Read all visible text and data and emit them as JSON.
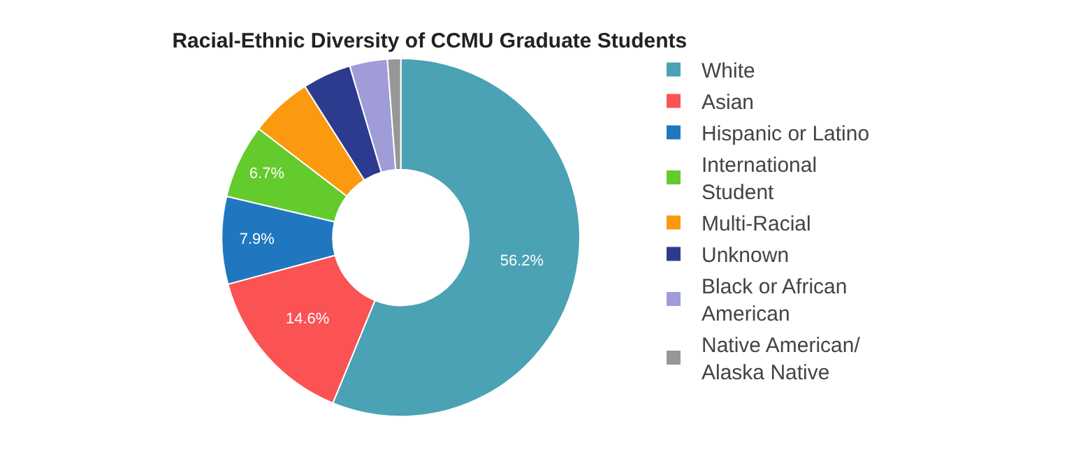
{
  "chart_data": {
    "type": "donut",
    "title": "Racial-Ethnic Diversity of CCMU Graduate Students",
    "categories": [
      "White",
      "Asian",
      "Hispanic or Latino",
      "International Student",
      "Multi-Racial",
      "Unknown",
      "Black or African American",
      "Native American/Alaska Native"
    ],
    "values": [
      56.2,
      14.6,
      7.9,
      6.7,
      5.6,
      4.4,
      3.4,
      1.2
    ],
    "value_labels": [
      "56.2%",
      "14.6%",
      "7.9%",
      "6.7%",
      null,
      null,
      null,
      null
    ],
    "colors": [
      "#4aa2b4",
      "#fb5254",
      "#2177bf",
      "#63cb2c",
      "#fb9a0e",
      "#2d3b8e",
      "#9f9cd8",
      "#979797"
    ],
    "legend": "right"
  }
}
